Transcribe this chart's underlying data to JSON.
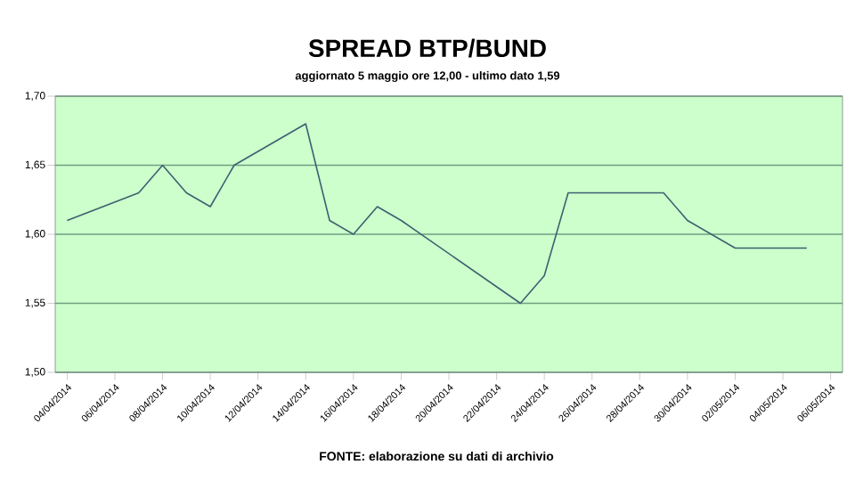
{
  "chart_data": {
    "type": "line",
    "title": "SPREAD BTP/BUND",
    "subtitle": "aggiornato 5 maggio ore 12,00 - ultimo dato 1,59",
    "annotations": [
      "FONTE: elaborazione su dati di archivio"
    ],
    "x": [
      "2014-04-04",
      "2014-04-07",
      "2014-04-08",
      "2014-04-09",
      "2014-04-10",
      "2014-04-11",
      "2014-04-14",
      "2014-04-15",
      "2014-04-16",
      "2014-04-17",
      "2014-04-18",
      "2014-04-23",
      "2014-04-24",
      "2014-04-25",
      "2014-04-29",
      "2014-04-30",
      "2014-05-01",
      "2014-05-02",
      "2014-05-05"
    ],
    "series": [
      {
        "color": "#3f5f70",
        "values": [
          1.61,
          1.63,
          1.65,
          1.63,
          1.62,
          1.65,
          1.68,
          1.61,
          1.6,
          1.62,
          1.61,
          1.55,
          1.57,
          1.63,
          1.63,
          1.61,
          1.6,
          1.59,
          1.59
        ]
      }
    ],
    "xlim": [
      "2014-04-03T12:00",
      "2014-05-06T12:00"
    ],
    "xticks": [
      {
        "value": "2014-04-04",
        "label": "04/04/2014"
      },
      {
        "value": "2014-04-06",
        "label": "06/04/2014"
      },
      {
        "value": "2014-04-08",
        "label": "08/04/2014"
      },
      {
        "value": "2014-04-10",
        "label": "10/04/2014"
      },
      {
        "value": "2014-04-12",
        "label": "12/04/2014"
      },
      {
        "value": "2014-04-14",
        "label": "14/04/2014"
      },
      {
        "value": "2014-04-16",
        "label": "16/04/2014"
      },
      {
        "value": "2014-04-18",
        "label": "18/04/2014"
      },
      {
        "value": "2014-04-20",
        "label": "20/04/2014"
      },
      {
        "value": "2014-04-22",
        "label": "22/04/2014"
      },
      {
        "value": "2014-04-24",
        "label": "24/04/2014"
      },
      {
        "value": "2014-04-26",
        "label": "26/04/2014"
      },
      {
        "value": "2014-04-28",
        "label": "28/04/2014"
      },
      {
        "value": "2014-04-30",
        "label": "30/04/2014"
      },
      {
        "value": "2014-05-02",
        "label": "02/05/2014"
      },
      {
        "value": "2014-05-04",
        "label": "04/05/2014"
      },
      {
        "value": "2014-05-06",
        "label": "06/05/2014"
      }
    ],
    "ylim": [
      1.5,
      1.7
    ],
    "yticks": [
      {
        "value": 1.5,
        "label": "1,50"
      },
      {
        "value": 1.55,
        "label": "1,55"
      },
      {
        "value": 1.6,
        "label": "1,60"
      },
      {
        "value": 1.65,
        "label": "1,65"
      },
      {
        "value": 1.7,
        "label": "1,70"
      }
    ],
    "grid": "y",
    "legend": false,
    "marker": "none",
    "line_style": "solid"
  }
}
